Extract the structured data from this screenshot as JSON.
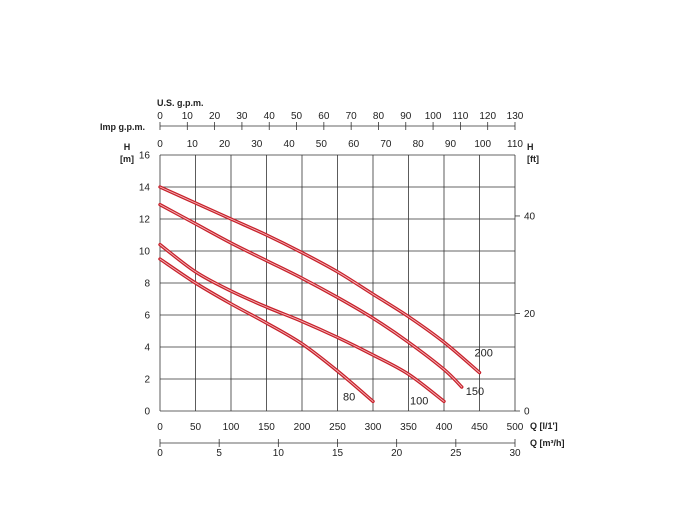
{
  "chart_data": {
    "type": "line",
    "axes": {
      "top_usgpm": {
        "label": "U.S. g.p.m.",
        "ticks": [
          "0",
          "10",
          "20",
          "30",
          "40",
          "50",
          "60",
          "70",
          "80",
          "90",
          "100",
          "110",
          "120",
          "130"
        ],
        "range": [
          0,
          130
        ]
      },
      "top_impgpm": {
        "label": "Imp g.p.m.",
        "ticks": [
          "0",
          "10",
          "20",
          "30",
          "40",
          "50",
          "60",
          "70",
          "80",
          "90",
          "100",
          "110"
        ],
        "range": [
          0,
          110
        ]
      },
      "left_h_m": {
        "label_line1": "H",
        "label_line2": "[m]",
        "ticks": [
          "0",
          "2",
          "4",
          "6",
          "8",
          "10",
          "12",
          "14",
          "16"
        ],
        "range": [
          0,
          16
        ]
      },
      "right_h_ft": {
        "label_line1": "H",
        "label_line2": "[ft]",
        "ticks": [
          "0",
          "20",
          "40"
        ],
        "range": [
          0,
          52.5
        ]
      },
      "bottom_q_lmin": {
        "label": "Q [l/1']",
        "ticks": [
          "0",
          "50",
          "100",
          "150",
          "200",
          "250",
          "300",
          "350",
          "400",
          "450",
          "500"
        ],
        "range": [
          0,
          500
        ]
      },
      "bottom_q_m3h": {
        "label": "Q [m³/h]",
        "ticks": [
          "0",
          "5",
          "10",
          "15",
          "20",
          "25",
          "30"
        ],
        "range": [
          0,
          30
        ]
      }
    },
    "grid": true,
    "series": [
      {
        "name": "80",
        "color": "#c8202a",
        "points": [
          [
            0,
            9.5
          ],
          [
            50,
            8
          ],
          [
            100,
            6.7
          ],
          [
            150,
            5.5
          ],
          [
            200,
            4.2
          ],
          [
            250,
            2.5
          ],
          [
            300,
            0.6
          ]
        ]
      },
      {
        "name": "100",
        "color": "#c8202a",
        "points": [
          [
            0,
            10.4
          ],
          [
            50,
            8.7
          ],
          [
            100,
            7.5
          ],
          [
            150,
            6.5
          ],
          [
            200,
            5.6
          ],
          [
            250,
            4.6
          ],
          [
            300,
            3.5
          ],
          [
            350,
            2.3
          ],
          [
            400,
            0.6
          ]
        ]
      },
      {
        "name": "150",
        "color": "#c8202a",
        "points": [
          [
            0,
            12.9
          ],
          [
            50,
            11.7
          ],
          [
            100,
            10.5
          ],
          [
            150,
            9.4
          ],
          [
            200,
            8.3
          ],
          [
            250,
            7.1
          ],
          [
            300,
            5.8
          ],
          [
            350,
            4.3
          ],
          [
            400,
            2.6
          ],
          [
            425,
            1.5
          ]
        ]
      },
      {
        "name": "200",
        "color": "#c8202a",
        "points": [
          [
            0,
            14
          ],
          [
            50,
            13
          ],
          [
            100,
            12
          ],
          [
            150,
            11
          ],
          [
            200,
            9.9
          ],
          [
            250,
            8.7
          ],
          [
            300,
            7.3
          ],
          [
            350,
            5.9
          ],
          [
            400,
            4.3
          ],
          [
            450,
            2.4
          ]
        ]
      }
    ]
  }
}
